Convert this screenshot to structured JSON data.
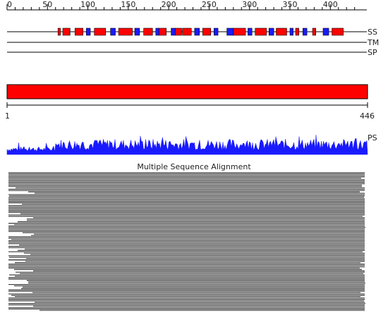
{
  "ruler": {
    "min": 0,
    "max": 430,
    "major_step": 50,
    "minor_step": 10,
    "labels": [
      "0",
      "50",
      "100",
      "150",
      "200",
      "250",
      "300",
      "350",
      "400"
    ]
  },
  "sequence_length": 446,
  "tracks": {
    "ss": "SS",
    "tm": "TM",
    "sp": "SP",
    "ps": "PS"
  },
  "domain_bar": {
    "start_label": "1",
    "end_label": "446",
    "color": "#ff0000"
  },
  "colors": {
    "helix": "#ff0000",
    "strand": "#1a1aff",
    "profile": "#1a1aff"
  },
  "secondary_structure": [
    {
      "type": "helix",
      "start": 63,
      "end": 66
    },
    {
      "type": "helix",
      "start": 69,
      "end": 78
    },
    {
      "type": "helix",
      "start": 84,
      "end": 94
    },
    {
      "type": "strand",
      "start": 98,
      "end": 103
    },
    {
      "type": "helix",
      "start": 108,
      "end": 122
    },
    {
      "type": "strand",
      "start": 128,
      "end": 134
    },
    {
      "type": "helix",
      "start": 138,
      "end": 155
    },
    {
      "type": "strand",
      "start": 158,
      "end": 164
    },
    {
      "type": "helix",
      "start": 169,
      "end": 180
    },
    {
      "type": "strand",
      "start": 184,
      "end": 188
    },
    {
      "type": "helix",
      "start": 188,
      "end": 197
    },
    {
      "type": "strand",
      "start": 203,
      "end": 208
    },
    {
      "type": "helix",
      "start": 208,
      "end": 216
    },
    {
      "type": "helix",
      "start": 217,
      "end": 228
    },
    {
      "type": "strand",
      "start": 232,
      "end": 238
    },
    {
      "type": "helix",
      "start": 242,
      "end": 252
    },
    {
      "type": "strand",
      "start": 256,
      "end": 261
    },
    {
      "type": "strand",
      "start": 272,
      "end": 280
    },
    {
      "type": "helix",
      "start": 280,
      "end": 295
    },
    {
      "type": "strand",
      "start": 298,
      "end": 303
    },
    {
      "type": "helix",
      "start": 307,
      "end": 321
    },
    {
      "type": "strand",
      "start": 324,
      "end": 330
    },
    {
      "type": "helix",
      "start": 333,
      "end": 346
    },
    {
      "type": "strand",
      "start": 350,
      "end": 354
    },
    {
      "type": "helix",
      "start": 357,
      "end": 361
    },
    {
      "type": "strand",
      "start": 366,
      "end": 371
    },
    {
      "type": "helix",
      "start": 378,
      "end": 382
    },
    {
      "type": "strand",
      "start": 391,
      "end": 398
    },
    {
      "type": "helix",
      "start": 402,
      "end": 416
    }
  ],
  "alignment_title": "Multiple Sequence Alignment"
}
